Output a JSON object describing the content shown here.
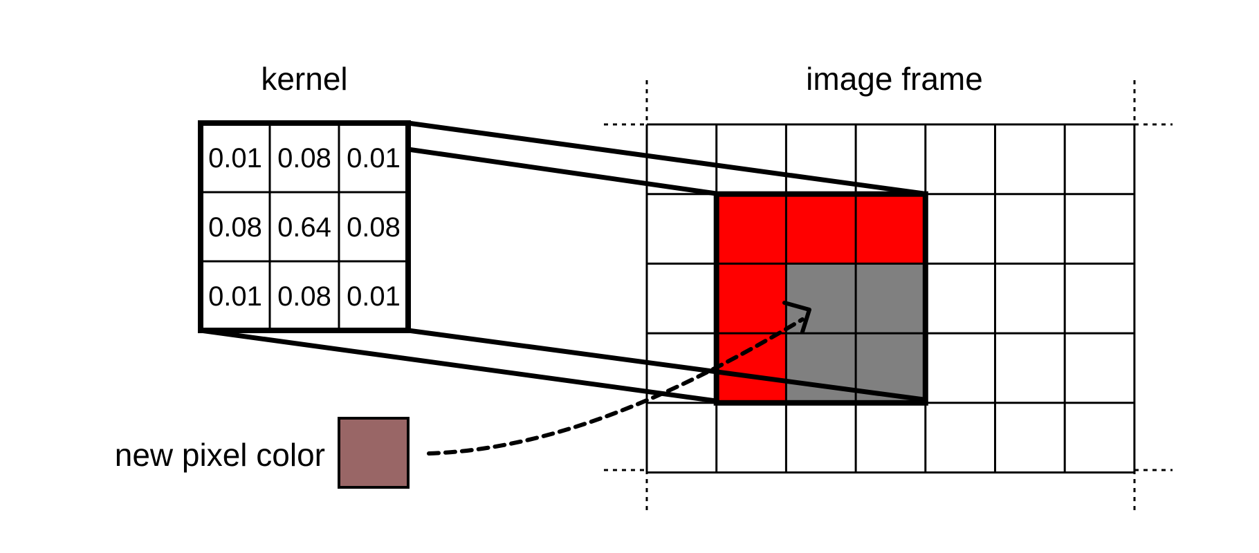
{
  "labels": {
    "kernel": "kernel",
    "image_frame": "image frame",
    "new_pixel": "new pixel color"
  },
  "kernel": {
    "values": [
      [
        "0.01",
        "0.08",
        "0.01"
      ],
      [
        "0.08",
        "0.64",
        "0.08"
      ],
      [
        "0.01",
        "0.08",
        "0.01"
      ]
    ]
  },
  "image_grid": {
    "cols": 7,
    "rows": 5,
    "kernel_window": {
      "col_start": 1,
      "row_start": 1,
      "size": 3
    },
    "red_cells": [
      [
        1,
        1
      ],
      [
        2,
        1
      ],
      [
        3,
        1
      ],
      [
        1,
        2
      ],
      [
        1,
        3
      ]
    ],
    "gray_cells": [
      [
        2,
        2
      ],
      [
        3,
        2
      ],
      [
        2,
        3
      ],
      [
        3,
        3
      ]
    ]
  },
  "colors": {
    "red": "#ff0000",
    "gray": "#808080",
    "new_pixel": "#996666",
    "stroke": "#000000"
  }
}
